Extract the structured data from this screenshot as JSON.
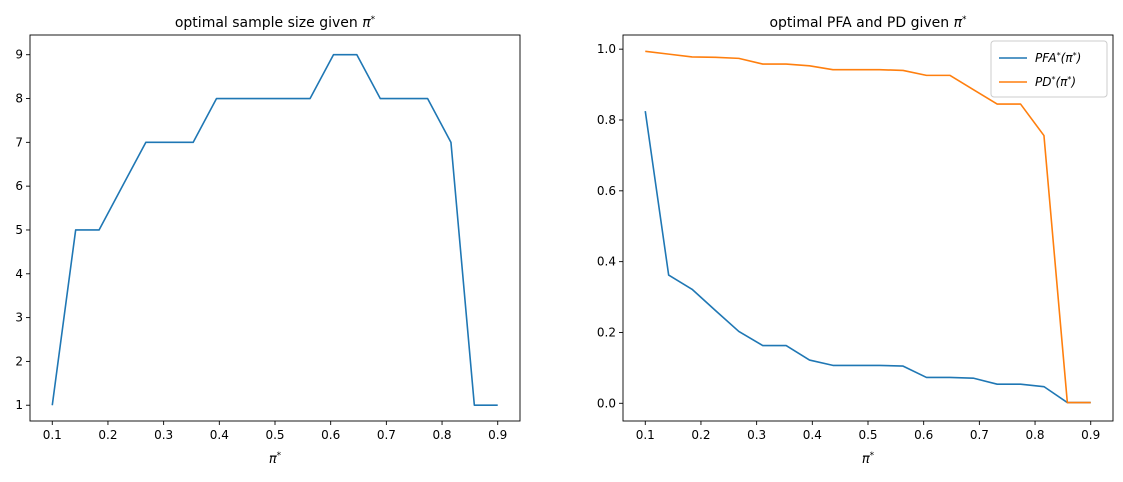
{
  "chart_data": [
    {
      "type": "line",
      "title": "optimal sample size given π*",
      "xlabel": "π*",
      "ylabel": "",
      "xlim": [
        0.06,
        0.94
      ],
      "ylim": [
        0.64,
        9.45
      ],
      "xticks": [
        0.1,
        0.2,
        0.3,
        0.4,
        0.5,
        0.6,
        0.7,
        0.8,
        0.9
      ],
      "xtick_labels": [
        "0.1",
        "0.2",
        "0.3",
        "0.4",
        "0.5",
        "0.6",
        "0.7",
        "0.8",
        "0.9"
      ],
      "yticks": [
        1,
        2,
        3,
        4,
        5,
        6,
        7,
        8,
        9
      ],
      "ytick_labels": [
        "1",
        "2",
        "3",
        "4",
        "5",
        "6",
        "7",
        "8",
        "9"
      ],
      "grid": false,
      "series": [
        {
          "color": "#1f77b4",
          "x": [
            0.1,
            0.142,
            0.184,
            0.226,
            0.268,
            0.311,
            0.353,
            0.395,
            0.437,
            0.479,
            0.521,
            0.563,
            0.605,
            0.647,
            0.689,
            0.732,
            0.774,
            0.816,
            0.858,
            0.9
          ],
          "y": [
            1,
            5,
            5,
            6,
            7,
            7,
            7,
            8,
            8,
            8,
            8,
            8,
            9,
            9,
            8,
            8,
            8,
            7,
            1,
            1
          ]
        }
      ]
    },
    {
      "type": "line",
      "title": "optimal PFA and PD given π*",
      "xlabel": "π*",
      "ylabel": "",
      "xlim": [
        0.06,
        0.94
      ],
      "ylim": [
        -0.05,
        1.04
      ],
      "xticks": [
        0.1,
        0.2,
        0.3,
        0.4,
        0.5,
        0.6,
        0.7,
        0.8,
        0.9
      ],
      "xtick_labels": [
        "0.1",
        "0.2",
        "0.3",
        "0.4",
        "0.5",
        "0.6",
        "0.7",
        "0.8",
        "0.9"
      ],
      "yticks": [
        0.0,
        0.2,
        0.4,
        0.6,
        0.8,
        1.0
      ],
      "ytick_labels": [
        "0.0",
        "0.2",
        "0.4",
        "0.6",
        "0.8",
        "1.0"
      ],
      "grid": false,
      "legend_position": "top-right",
      "series": [
        {
          "name": "PFA*(π*)",
          "color": "#1f77b4",
          "x": [
            0.1,
            0.142,
            0.184,
            0.226,
            0.268,
            0.311,
            0.353,
            0.395,
            0.437,
            0.479,
            0.521,
            0.563,
            0.605,
            0.647,
            0.689,
            0.732,
            0.774,
            0.816,
            0.858,
            0.9
          ],
          "y": [
            0.825,
            0.362,
            0.322,
            0.262,
            0.203,
            0.163,
            0.163,
            0.122,
            0.107,
            0.107,
            0.107,
            0.105,
            0.073,
            0.073,
            0.071,
            0.054,
            0.054,
            0.047,
            0.002,
            0.002
          ]
        },
        {
          "name": "PD*(π*)",
          "color": "#ff7f0e",
          "x": [
            0.1,
            0.142,
            0.184,
            0.226,
            0.268,
            0.311,
            0.353,
            0.395,
            0.437,
            0.479,
            0.521,
            0.563,
            0.605,
            0.647,
            0.689,
            0.732,
            0.774,
            0.816,
            0.858,
            0.9
          ],
          "y": [
            0.994,
            0.986,
            0.978,
            0.977,
            0.974,
            0.958,
            0.958,
            0.953,
            0.942,
            0.942,
            0.942,
            0.94,
            0.926,
            0.926,
            0.886,
            0.845,
            0.845,
            0.756,
            0.002,
            0.002
          ]
        }
      ]
    }
  ]
}
